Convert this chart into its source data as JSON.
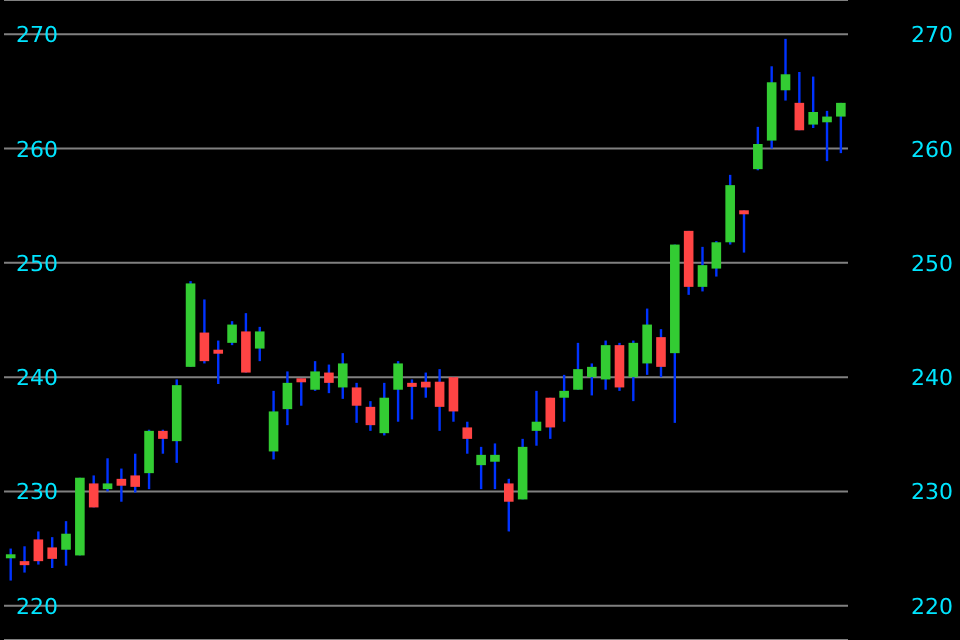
{
  "chart_data": {
    "type": "candlestick",
    "categories": [
      null,
      null,
      null,
      null,
      null,
      null,
      null,
      null,
      null,
      null,
      null,
      null,
      null,
      null,
      null,
      null,
      null,
      null,
      null,
      null,
      null,
      null,
      null,
      null,
      null,
      null,
      null,
      null,
      null,
      null,
      null,
      null,
      null,
      null,
      null,
      null,
      null,
      null,
      null,
      null,
      null,
      null,
      null,
      null,
      null,
      null,
      null,
      null,
      null,
      null,
      null,
      null,
      null,
      null,
      null,
      null,
      null,
      null,
      null,
      null,
      null
    ],
    "ohlc": [
      [
        224.3,
        225.0,
        222.2,
        224.5
      ],
      [
        223.9,
        225.2,
        222.9,
        223.8
      ],
      [
        225.8,
        226.5,
        223.6,
        223.9
      ],
      [
        225.1,
        226.0,
        223.3,
        224.1
      ],
      [
        224.9,
        227.4,
        223.5,
        226.3
      ],
      [
        224.4,
        231.2,
        224.4,
        231.2
      ],
      [
        230.7,
        231.4,
        228.6,
        228.6
      ],
      [
        230.2,
        232.9,
        230.0,
        230.7
      ],
      [
        231.1,
        232.0,
        229.1,
        230.5
      ],
      [
        231.4,
        233.3,
        229.9,
        230.4
      ],
      [
        231.6,
        235.4,
        230.2,
        235.3
      ],
      [
        235.3,
        235.4,
        233.3,
        234.6
      ],
      [
        234.4,
        239.8,
        232.5,
        239.3
      ],
      [
        240.9,
        248.4,
        240.9,
        248.2
      ],
      [
        243.9,
        246.8,
        241.2,
        241.4
      ],
      [
        242.4,
        243.2,
        239.4,
        242.2
      ],
      [
        243.0,
        244.9,
        242.8,
        244.6
      ],
      [
        244.0,
        245.6,
        240.4,
        240.4
      ],
      [
        242.5,
        244.4,
        241.4,
        244.0
      ],
      [
        233.5,
        238.8,
        232.8,
        237.0
      ],
      [
        237.2,
        240.5,
        235.8,
        239.5
      ],
      [
        239.9,
        239.9,
        237.5,
        239.7
      ],
      [
        238.9,
        241.4,
        238.8,
        240.5
      ],
      [
        240.4,
        241.1,
        238.6,
        239.5
      ],
      [
        239.1,
        242.1,
        238.1,
        241.2
      ],
      [
        239.1,
        239.5,
        236.0,
        237.5
      ],
      [
        237.4,
        237.9,
        235.3,
        235.8
      ],
      [
        235.1,
        239.5,
        234.9,
        238.2
      ],
      [
        238.9,
        241.4,
        236.1,
        241.2
      ],
      [
        239.5,
        239.8,
        236.3,
        239.3
      ],
      [
        239.6,
        240.4,
        238.2,
        239.1
      ],
      [
        239.6,
        240.7,
        235.3,
        237.4
      ],
      [
        240.0,
        240.0,
        236.1,
        237.0
      ],
      [
        235.6,
        236.1,
        233.3,
        234.6
      ],
      [
        232.3,
        233.9,
        230.2,
        233.2
      ],
      [
        232.6,
        234.2,
        230.2,
        233.2
      ],
      [
        230.7,
        231.1,
        226.5,
        229.1
      ],
      [
        229.3,
        234.6,
        229.3,
        233.9
      ],
      [
        235.3,
        238.8,
        234.0,
        236.1
      ],
      [
        238.2,
        238.2,
        234.6,
        235.6
      ],
      [
        238.2,
        240.2,
        236.1,
        238.8
      ],
      [
        238.9,
        243.0,
        238.9,
        240.7
      ],
      [
        240.0,
        241.2,
        238.4,
        240.9
      ],
      [
        239.8,
        243.2,
        238.9,
        242.8
      ],
      [
        242.8,
        243.0,
        238.8,
        239.1
      ],
      [
        240.0,
        243.2,
        237.9,
        243.0
      ],
      [
        241.2,
        246.0,
        240.2,
        244.6
      ],
      [
        243.5,
        244.2,
        240.0,
        240.9
      ],
      [
        242.1,
        251.6,
        236.0,
        251.6
      ],
      [
        252.8,
        252.8,
        247.2,
        247.9
      ],
      [
        247.9,
        251.4,
        247.5,
        249.8
      ],
      [
        249.5,
        251.9,
        248.8,
        251.8
      ],
      [
        251.8,
        257.7,
        251.6,
        256.8
      ],
      [
        254.6,
        254.6,
        250.9,
        254.4
      ],
      [
        258.2,
        261.9,
        258.1,
        260.4
      ],
      [
        260.7,
        267.2,
        260.0,
        265.8
      ],
      [
        265.1,
        269.6,
        264.2,
        266.5
      ],
      [
        264.0,
        266.7,
        261.6,
        261.6
      ],
      [
        262.1,
        266.3,
        261.8,
        263.2
      ],
      [
        262.3,
        263.3,
        258.9,
        262.8
      ],
      [
        262.8,
        264.0,
        259.6,
        264.0
      ]
    ],
    "ylim": [
      217,
      273
    ],
    "yticks": [
      220,
      230,
      240,
      250,
      260,
      270
    ],
    "y2lim": [
      217,
      273
    ],
    "y2ticks": [
      220,
      230,
      240,
      250,
      260,
      270
    ],
    "grid": "y",
    "legend": false
  }
}
